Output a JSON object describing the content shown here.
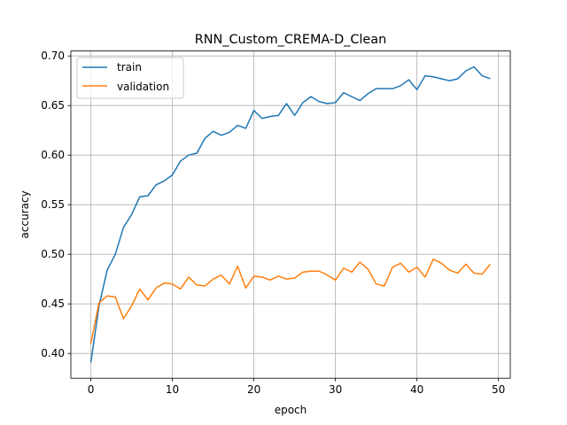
{
  "chart_data": {
    "type": "line",
    "title": "RNN_Custom_CREMA-D_Clean",
    "xlabel": "epoch",
    "ylabel": "accuracy",
    "xlim": [
      -2.45,
      51.45
    ],
    "ylim": [
      0.375,
      0.705
    ],
    "xticks": [
      0,
      10,
      20,
      30,
      40,
      50
    ],
    "yticks": [
      0.4,
      0.45,
      0.5,
      0.55,
      0.6,
      0.65,
      0.7
    ],
    "xtick_labels": [
      "0",
      "10",
      "20",
      "30",
      "40",
      "50"
    ],
    "ytick_labels": [
      "0.40",
      "0.45",
      "0.50",
      "0.55",
      "0.60",
      "0.65",
      "0.70"
    ],
    "grid": true,
    "legend_position": "top-left",
    "x": [
      0,
      1,
      2,
      3,
      4,
      5,
      6,
      7,
      8,
      9,
      10,
      11,
      12,
      13,
      14,
      15,
      16,
      17,
      18,
      19,
      20,
      21,
      22,
      23,
      24,
      25,
      26,
      27,
      28,
      29,
      30,
      31,
      32,
      33,
      34,
      35,
      36,
      37,
      38,
      39,
      40,
      41,
      42,
      43,
      44,
      45,
      46,
      47,
      48,
      49
    ],
    "series": [
      {
        "name": "train",
        "color": "#1f77b4",
        "values": [
          0.391,
          0.448,
          0.484,
          0.5,
          0.527,
          0.54,
          0.558,
          0.559,
          0.57,
          0.574,
          0.58,
          0.594,
          0.6,
          0.602,
          0.617,
          0.624,
          0.62,
          0.623,
          0.63,
          0.627,
          0.645,
          0.637,
          0.639,
          0.64,
          0.652,
          0.64,
          0.653,
          0.659,
          0.654,
          0.652,
          0.653,
          0.663,
          0.659,
          0.655,
          0.662,
          0.667,
          0.667,
          0.667,
          0.67,
          0.676,
          0.666,
          0.68,
          0.679,
          0.677,
          0.675,
          0.677,
          0.685,
          0.689,
          0.68,
          0.677
        ]
      },
      {
        "name": "validation",
        "color": "#ff7f0e",
        "values": [
          0.41,
          0.451,
          0.458,
          0.457,
          0.435,
          0.448,
          0.465,
          0.454,
          0.466,
          0.471,
          0.47,
          0.465,
          0.477,
          0.469,
          0.468,
          0.475,
          0.479,
          0.47,
          0.488,
          0.466,
          0.478,
          0.477,
          0.474,
          0.478,
          0.475,
          0.476,
          0.482,
          0.483,
          0.483,
          0.479,
          0.474,
          0.486,
          0.482,
          0.492,
          0.485,
          0.47,
          0.468,
          0.487,
          0.491,
          0.482,
          0.487,
          0.477,
          0.495,
          0.491,
          0.484,
          0.481,
          0.49,
          0.481,
          0.48,
          0.49
        ]
      }
    ]
  }
}
